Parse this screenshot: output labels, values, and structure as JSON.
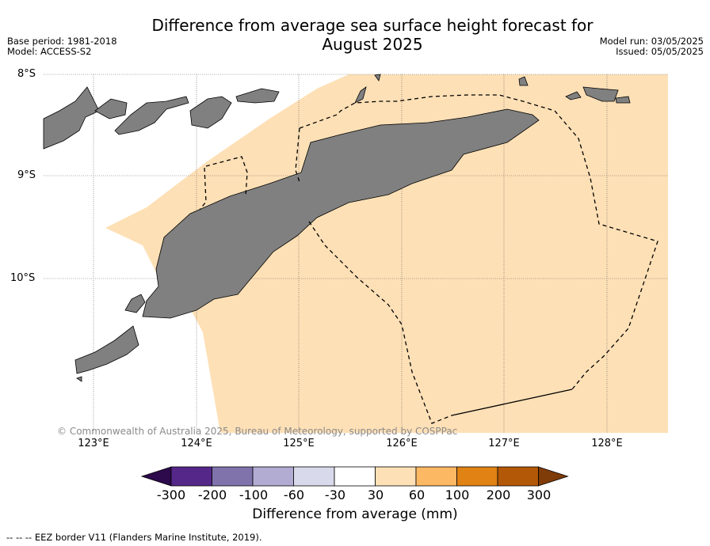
{
  "title_line1": "Difference from average sea surface height forecast for",
  "title_line2": "August 2025",
  "base_period": "Base period: 1981-2018",
  "model": "Model: ACCESS-S2",
  "model_run": "Model run: 03/05/2025",
  "issued": "Issued: 05/05/2025",
  "lat_labels": [
    "8°S",
    "9°S",
    "10°S"
  ],
  "lon_labels": [
    "123°E",
    "124°E",
    "125°E",
    "126°E",
    "127°E",
    "128°E"
  ],
  "copyright": "© Commonwealth of Australia 2025, Bureau of Meteorology, supported by COSPPac",
  "colorbar": {
    "label": "Difference from average (mm)",
    "ticks": [
      "-300",
      "-200",
      "-100",
      "-60",
      "-30",
      "30",
      "60",
      "100",
      "200",
      "300"
    ],
    "colors": [
      "#2d0a4b",
      "#542788",
      "#8073ac",
      "#b2abd2",
      "#d8daeb",
      "#ffffff",
      "#fee0b6",
      "#fdb863",
      "#e08214",
      "#b35806",
      "#7f3b08"
    ]
  },
  "ocean_color": "#fee0b6",
  "land_color": "#808080",
  "footnote": "--  --  -- EEZ border V11 (Flanders Marine Institute, 2019)."
}
